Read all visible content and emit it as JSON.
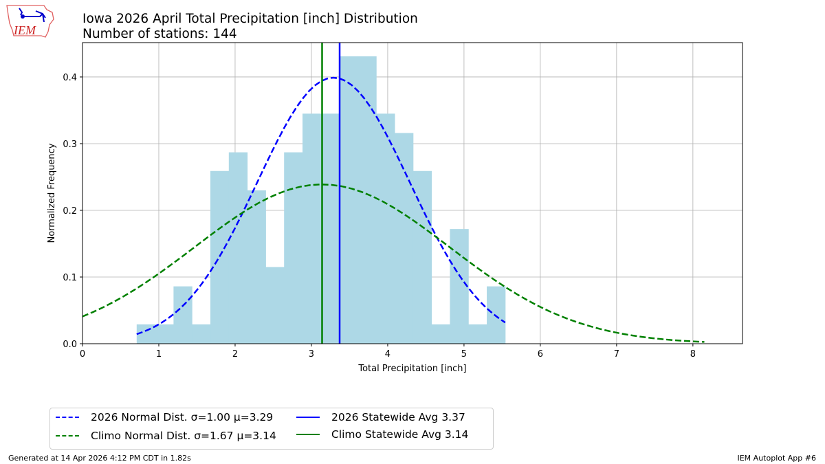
{
  "header": {
    "title": "Iowa 2026 April Total Precipitation [inch] Distribution",
    "subtitle": "Number of stations: 144",
    "logo_text": "IEM"
  },
  "chart_data": {
    "type": "bar",
    "title": "Iowa 2026 April Total Precipitation [inch] Distribution",
    "subtitle": "Number of stations: 144",
    "xlabel": "Total Precipitation [inch]",
    "ylabel": "Normalized Frequency",
    "xlim": [
      0,
      8.65
    ],
    "ylim": [
      0,
      0.4515
    ],
    "xticks": [
      "0",
      "1",
      "2",
      "3",
      "4",
      "5",
      "6",
      "7",
      "8"
    ],
    "yticks": [
      "0.0",
      "0.1",
      "0.2",
      "0.3",
      "0.4"
    ],
    "grid": true,
    "legend_placement": "below",
    "histogram": {
      "color": "#add8e6",
      "bin_start": 0.71,
      "bin_width": 0.2415,
      "counts": [
        1,
        1,
        3,
        1,
        9,
        10,
        8,
        4,
        10,
        12,
        12,
        15,
        15,
        12,
        11,
        9,
        1,
        6,
        1,
        3
      ],
      "values": [
        0.029,
        0.029,
        0.086,
        0.029,
        0.259,
        0.287,
        0.23,
        0.115,
        0.287,
        0.345,
        0.345,
        0.431,
        0.431,
        0.345,
        0.316,
        0.259,
        0.029,
        0.172,
        0.029,
        0.086
      ]
    },
    "series": [
      {
        "name": "2026 Normal Dist. σ=1.00 μ=3.29",
        "type": "normal-curve",
        "sigma": 1.0,
        "mu": 3.29,
        "x_range": [
          0.71,
          5.54
        ],
        "color": "#0000ff",
        "style": "dashed"
      },
      {
        "name": "Climo Normal Dist. σ=1.67 μ=3.14",
        "type": "normal-curve",
        "sigma": 1.67,
        "mu": 3.14,
        "x_range": [
          0,
          8.15
        ],
        "color": "#008000",
        "style": "dashed"
      },
      {
        "name": "2026 Statewide Avg 3.37",
        "type": "vline",
        "x": 3.37,
        "color": "#0000ff",
        "style": "solid"
      },
      {
        "name": "Climo Statewide Avg 3.14",
        "type": "vline",
        "x": 3.14,
        "color": "#008000",
        "style": "solid"
      }
    ]
  },
  "footer": {
    "left": "Generated at 14 Apr 2026 4:12 PM CDT in 1.82s",
    "right": "IEM Autoplot App #6"
  }
}
